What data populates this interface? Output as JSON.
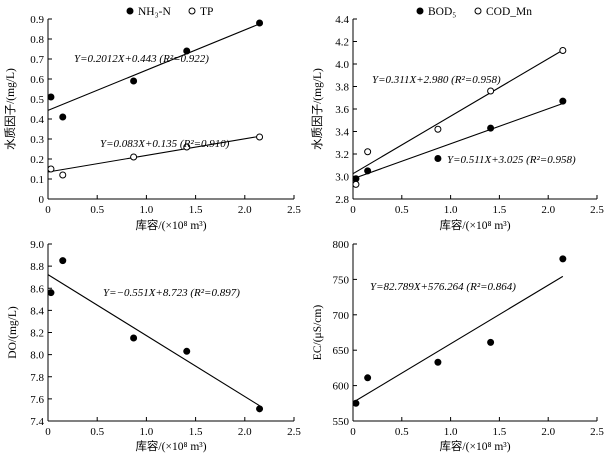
{
  "chart_data": [
    {
      "type": "scatter",
      "xlabel": "库容/(×10⁸ m³)",
      "ylabel": "水质因子/(mg/L)",
      "xlim": [
        0,
        2.5
      ],
      "ylim": [
        0,
        0.9
      ],
      "xticks": [
        "0",
        "0.5",
        "1.0",
        "1.5",
        "2.0",
        "2.5"
      ],
      "yticks": [
        "0",
        "0.1",
        "0.2",
        "0.3",
        "0.4",
        "0.5",
        "0.6",
        "0.7",
        "0.8",
        "0.9"
      ],
      "legend_position": "top",
      "series": [
        {
          "name": "NH₃-N",
          "marker": "filled-circle",
          "x": [
            0.03,
            0.15,
            0.87,
            1.41,
            2.15
          ],
          "y": [
            0.51,
            0.41,
            0.59,
            0.74,
            0.88
          ],
          "fit": {
            "slope": 0.2012,
            "intercept": 0.443,
            "label": "Y=0.2012X+0.443 (R²=0.922)"
          }
        },
        {
          "name": "TP",
          "marker": "open-circle",
          "x": [
            0.03,
            0.15,
            0.87,
            1.41,
            2.15
          ],
          "y": [
            0.15,
            0.12,
            0.21,
            0.26,
            0.31
          ],
          "fit": {
            "slope": 0.083,
            "intercept": 0.135,
            "label": "Y=0.083X+0.135 (R²=0.910)"
          }
        }
      ]
    },
    {
      "type": "scatter",
      "xlabel": "库容/(×10⁸ m³)",
      "ylabel": "水质因子/(mg/L)",
      "xlim": [
        0,
        2.5
      ],
      "ylim": [
        2.8,
        4.4
      ],
      "xticks": [
        "0",
        "0.5",
        "1.0",
        "1.5",
        "2.0",
        "2.5"
      ],
      "yticks": [
        "2.8",
        "3.0",
        "3.2",
        "3.4",
        "3.6",
        "3.8",
        "4.0",
        "4.2",
        "4.4"
      ],
      "legend_position": "top",
      "series": [
        {
          "name": "BOD₅",
          "marker": "filled-circle",
          "x": [
            0.03,
            0.15,
            0.87,
            1.41,
            2.15
          ],
          "y": [
            2.98,
            3.05,
            3.16,
            3.43,
            3.67
          ],
          "fit": {
            "slope": 0.311,
            "intercept": 2.98,
            "label": "Y=0.311X+2.980 (R²=0.958)"
          }
        },
        {
          "name": "COD_Mn",
          "marker": "open-circle",
          "x": [
            0.03,
            0.15,
            0.87,
            1.41,
            2.15
          ],
          "y": [
            2.93,
            3.22,
            3.42,
            3.76,
            4.12
          ],
          "fit": {
            "slope": 0.511,
            "intercept": 3.025,
            "label": "Y=0.511X+3.025 (R²=0.958)"
          }
        }
      ]
    },
    {
      "type": "scatter",
      "xlabel": "库容/(×10⁸ m³)",
      "ylabel": "DO/(mg/L)",
      "xlim": [
        0,
        2.5
      ],
      "ylim": [
        7.4,
        9.0
      ],
      "xticks": [
        "0",
        "0.5",
        "1.0",
        "1.5",
        "2.0",
        "2.5"
      ],
      "yticks": [
        "7.4",
        "7.6",
        "7.8",
        "8.0",
        "8.2",
        "8.4",
        "8.6",
        "8.8",
        "9.0"
      ],
      "series": [
        {
          "marker": "filled-circle",
          "x": [
            0.03,
            0.15,
            0.87,
            1.41,
            2.15
          ],
          "y": [
            8.56,
            8.85,
            8.15,
            8.03,
            7.51
          ],
          "fit": {
            "slope": -0.551,
            "intercept": 8.723,
            "label": "Y=−0.551X+8.723 (R²=0.897)"
          }
        }
      ]
    },
    {
      "type": "scatter",
      "xlabel": "库容/(×10⁸ m³)",
      "ylabel": "EC/(μS/cm)",
      "xlim": [
        0,
        2.5
      ],
      "ylim": [
        550,
        800
      ],
      "xticks": [
        "0",
        "0.5",
        "1.0",
        "1.5",
        "2.0",
        "2.5"
      ],
      "yticks": [
        "550",
        "600",
        "650",
        "700",
        "750",
        "800"
      ],
      "series": [
        {
          "marker": "filled-circle",
          "x": [
            0.03,
            0.15,
            0.87,
            1.41,
            2.15
          ],
          "y": [
            575,
            611,
            633,
            661,
            779
          ],
          "fit": {
            "slope": 82.789,
            "intercept": 576.264,
            "label": "Y=82.789X+576.264 (R²=0.864)"
          }
        }
      ]
    }
  ]
}
